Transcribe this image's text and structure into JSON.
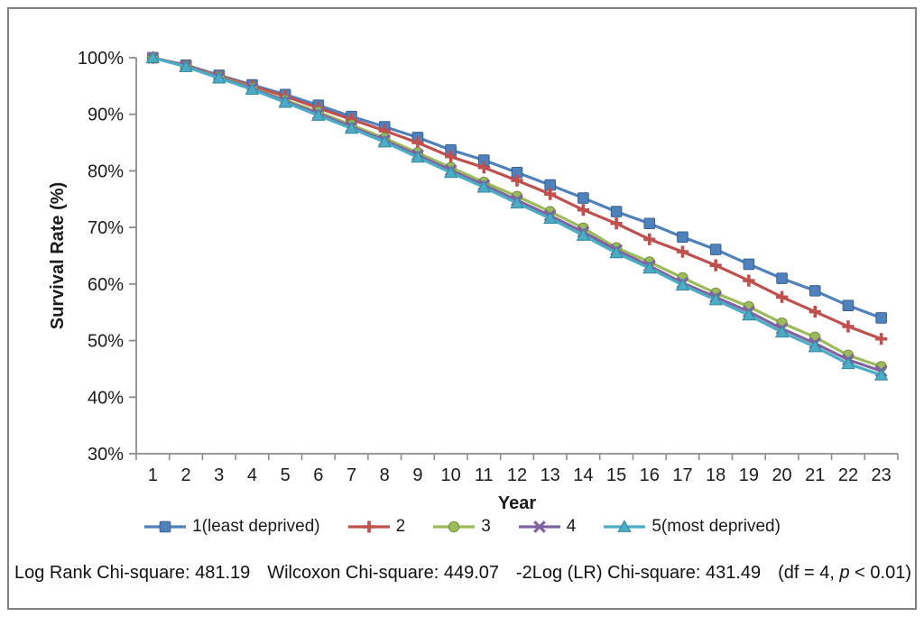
{
  "chart_data": {
    "type": "line",
    "title": "",
    "xlabel": "Year",
    "ylabel": "Survival Rate (%)",
    "ylim": [
      30,
      100
    ],
    "yticks": [
      100,
      90,
      80,
      70,
      60,
      50,
      40,
      30
    ],
    "ytick_suffix": "%",
    "grid": false,
    "legend_position": "bottom",
    "years": [
      1,
      2,
      3,
      4,
      5,
      6,
      7,
      8,
      9,
      10,
      11,
      12,
      13,
      14,
      15,
      16,
      17,
      18,
      19,
      20,
      21,
      22,
      23
    ],
    "series": [
      {
        "name": "1(least deprived)",
        "marker": "square-icon",
        "color": "#4F81BD",
        "edge": "#38618F",
        "values": [
          100,
          98.7,
          96.9,
          95.2,
          93.5,
          91.6,
          89.6,
          87.8,
          85.9,
          83.7,
          81.9,
          79.7,
          77.5,
          75.2,
          72.8,
          70.7,
          68.3,
          66.1,
          63.5,
          61.0,
          58.8,
          56.2,
          54.0
        ]
      },
      {
        "name": "2",
        "marker": "plus-icon",
        "color": "#C0504D",
        "edge": "#943D3B",
        "values": [
          100,
          98.6,
          96.8,
          95.0,
          93.2,
          91.1,
          89.1,
          87.1,
          85.0,
          82.5,
          80.6,
          78.3,
          75.9,
          73.1,
          70.7,
          67.9,
          65.7,
          63.3,
          60.6,
          57.7,
          55.1,
          52.5,
          50.3
        ]
      },
      {
        "name": "3",
        "marker": "circle-icon",
        "color": "#9BBB59",
        "edge": "#77913F",
        "values": [
          100,
          98.5,
          96.6,
          94.7,
          92.5,
          90.4,
          88.1,
          85.8,
          83.2,
          80.6,
          78.0,
          75.5,
          72.8,
          69.9,
          66.4,
          63.9,
          61.1,
          58.4,
          56.0,
          53.1,
          50.6,
          47.4,
          45.4
        ]
      },
      {
        "name": "4",
        "marker": "x-cross-icon",
        "color": "#8064A2",
        "edge": "#624E7E",
        "values": [
          100,
          98.5,
          96.5,
          94.6,
          92.3,
          90.1,
          87.8,
          85.4,
          82.8,
          80.1,
          77.5,
          74.8,
          72.1,
          69.2,
          66.0,
          63.2,
          60.2,
          57.7,
          55.1,
          52.1,
          49.5,
          46.6,
          44.6
        ]
      },
      {
        "name": "5(most deprived)",
        "marker": "triangle-icon",
        "color": "#4BACC6",
        "edge": "#35869C",
        "values": [
          100,
          98.4,
          96.4,
          94.4,
          92.1,
          89.8,
          87.5,
          85.1,
          82.4,
          79.7,
          77.1,
          74.3,
          71.6,
          68.6,
          65.5,
          62.8,
          59.8,
          57.2,
          54.5,
          51.5,
          48.9,
          45.9,
          43.9
        ]
      }
    ]
  },
  "footer": {
    "stat1": "Log Rank Chi-square: 481.19",
    "stat2": "Wilcoxon Chi-square: 449.07",
    "stat3": "-2Log (LR) Chi-square: 431.49",
    "df_prefix": "(df = 4, ",
    "df_p": "p",
    "df_suffix": " < 0.01)"
  },
  "colors": {
    "axis": "#8C8C8C",
    "text": "#1B1B1B",
    "frame_border": "#7F7F7F"
  }
}
